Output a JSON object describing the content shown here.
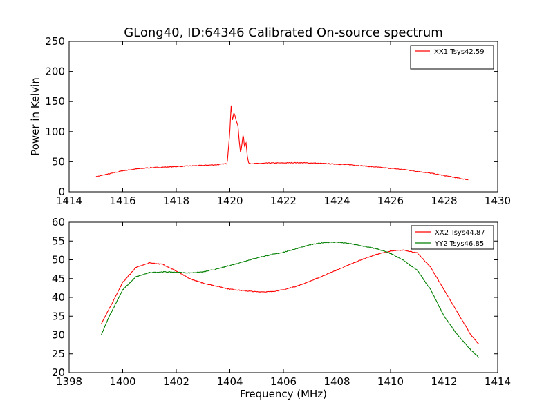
{
  "chart_data": [
    {
      "type": "line",
      "title": "GLong40, ID:64346 Calibrated On-source spectrum",
      "xlabel": "",
      "ylabel": "Power in Kelvin",
      "xlim": [
        1414,
        1430
      ],
      "ylim": [
        0,
        250
      ],
      "xticks": [
        "1414",
        "1416",
        "1418",
        "1420",
        "1422",
        "1424",
        "1426",
        "1428",
        "1430"
      ],
      "yticks": [
        "0",
        "50",
        "100",
        "150",
        "200",
        "250"
      ],
      "grid": false,
      "legend_position": "top-right",
      "series": [
        {
          "name": "XX1 Tsys42.59",
          "color": "#ff0000",
          "x": [
            1415.0,
            1415.5,
            1416.0,
            1416.5,
            1417.0,
            1417.5,
            1418.0,
            1418.5,
            1419.0,
            1419.5,
            1419.9,
            1420.0,
            1420.05,
            1420.1,
            1420.15,
            1420.2,
            1420.25,
            1420.3,
            1420.35,
            1420.4,
            1420.45,
            1420.5,
            1420.55,
            1420.6,
            1420.65,
            1420.7,
            1420.8,
            1421.0,
            1421.5,
            1422.0,
            1422.5,
            1423.0,
            1423.5,
            1424.0,
            1424.5,
            1425.0,
            1425.5,
            1426.0,
            1426.5,
            1427.0,
            1427.5,
            1428.0,
            1428.5,
            1428.9
          ],
          "y": [
            25,
            30,
            35,
            38,
            40,
            41,
            42,
            43,
            44,
            45,
            47,
            100,
            144,
            118,
            132,
            125,
            116,
            112,
            85,
            64,
            78,
            98,
            72,
            85,
            60,
            48,
            47,
            47,
            48,
            48,
            48.5,
            48,
            47,
            46,
            45,
            43,
            41,
            39,
            37,
            34,
            31,
            27,
            23,
            20
          ]
        }
      ]
    },
    {
      "type": "line",
      "title": "",
      "xlabel": "Frequency (MHz)",
      "ylabel": "",
      "xlim": [
        1398,
        1414
      ],
      "ylim": [
        20,
        60
      ],
      "xticks": [
        "1398",
        "1400",
        "1402",
        "1404",
        "1406",
        "1408",
        "1410",
        "1412",
        "1414"
      ],
      "yticks": [
        "20",
        "25",
        "30",
        "35",
        "40",
        "45",
        "50",
        "55",
        "60"
      ],
      "grid": false,
      "legend_position": "top-right",
      "series": [
        {
          "name": "XX2 Tsys44.87",
          "color": "#ff0000",
          "x": [
            1399.2,
            1399.5,
            1400.0,
            1400.5,
            1401.0,
            1401.5,
            1402.0,
            1402.5,
            1403.0,
            1403.5,
            1404.0,
            1404.5,
            1405.0,
            1405.5,
            1406.0,
            1406.5,
            1407.0,
            1407.5,
            1408.0,
            1408.5,
            1409.0,
            1409.5,
            1410.0,
            1410.5,
            1411.0,
            1411.5,
            1412.0,
            1412.5,
            1413.0,
            1413.3
          ],
          "y": [
            33,
            37,
            44,
            48,
            49.2,
            48.8,
            47,
            45,
            43.8,
            43,
            42.2,
            41.8,
            41.5,
            41.5,
            42,
            43,
            44.3,
            45.8,
            47.3,
            48.8,
            50.3,
            51.5,
            52.3,
            52.6,
            51.8,
            48,
            42,
            36,
            30,
            27.5
          ]
        },
        {
          "name": "YY2 Tsys46.85",
          "color": "#007f00",
          "x": [
            1399.2,
            1399.5,
            1400.0,
            1400.5,
            1401.0,
            1401.5,
            1402.0,
            1402.5,
            1403.0,
            1403.5,
            1404.0,
            1404.5,
            1405.0,
            1405.5,
            1406.0,
            1406.5,
            1407.0,
            1407.5,
            1408.0,
            1408.5,
            1409.0,
            1409.5,
            1410.0,
            1410.5,
            1411.0,
            1411.5,
            1412.0,
            1412.5,
            1413.0,
            1413.3
          ],
          "y": [
            30,
            35,
            42,
            45.5,
            46.6,
            46.8,
            46.7,
            46.5,
            46.8,
            47.5,
            48.5,
            49.5,
            50.5,
            51.3,
            52,
            53,
            54,
            54.6,
            54.7,
            54.3,
            53.6,
            52.9,
            51.7,
            49.8,
            47.2,
            42,
            35,
            30,
            26,
            24
          ]
        }
      ]
    }
  ]
}
